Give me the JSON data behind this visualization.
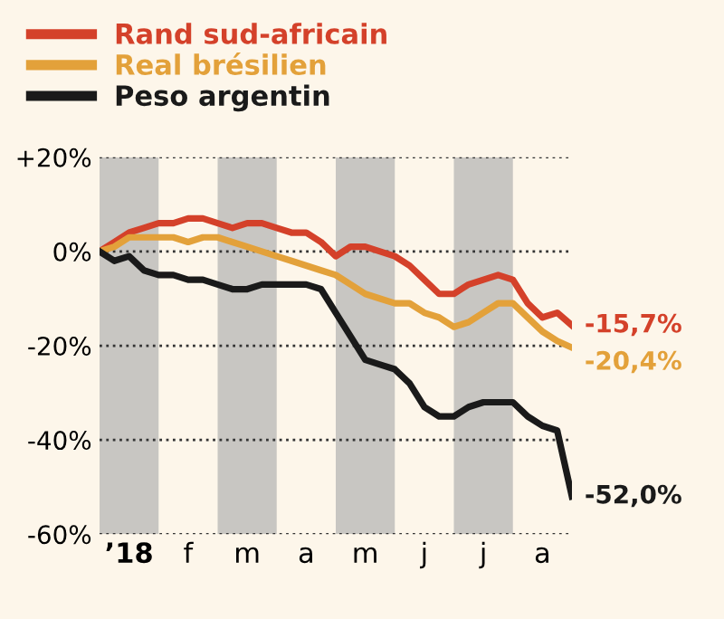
{
  "chart_data": {
    "type": "line",
    "categories": [
      null,
      null,
      "’18",
      null,
      null,
      null,
      "f",
      null,
      null,
      null,
      "m",
      null,
      null,
      null,
      "a",
      null,
      null,
      null,
      "m",
      null,
      null,
      null,
      "j",
      null,
      null,
      null,
      "j",
      null,
      null,
      null,
      "a",
      null,
      null
    ],
    "ylim": [
      -60,
      20
    ],
    "yticks": [
      {
        "value": 20,
        "label": "+20%"
      },
      {
        "value": 0,
        "label": "0%"
      },
      {
        "value": -20,
        "label": "-20%"
      },
      {
        "value": -40,
        "label": "-40%"
      },
      {
        "value": -60,
        "label": "-60%"
      }
    ],
    "grid": "y",
    "legend": "top left",
    "series": [
      {
        "name": "Rand sud-africain",
        "color": "#d4412a",
        "values": [
          0,
          2,
          4,
          5,
          6,
          6,
          7,
          7,
          6,
          5,
          6,
          6,
          5,
          4,
          4,
          2,
          -1,
          1,
          1,
          0,
          -1,
          -3,
          -6,
          -9,
          -9,
          -7,
          -6,
          -5,
          -6,
          -11,
          -14,
          -13,
          -15.7
        ]
      },
      {
        "name": "Real brésilien",
        "color": "#e3a13a",
        "values": [
          0,
          1,
          3,
          3,
          3,
          3,
          2,
          3,
          3,
          2,
          1,
          0,
          -1,
          -2,
          -3,
          -4,
          -5,
          -7,
          -9,
          -10,
          -11,
          -11,
          -13,
          -14,
          -16,
          -15,
          -13,
          -11,
          -11,
          -14,
          -17,
          -19,
          -20.4
        ]
      },
      {
        "name": "Peso argentin",
        "color": "#1a1a1a",
        "values": [
          0,
          -2,
          -1,
          -4,
          -5,
          -5,
          -6,
          -6,
          -7,
          -8,
          -8,
          -7,
          -7,
          -7,
          -7,
          -8,
          -13,
          -18,
          -23,
          -24,
          -25,
          -28,
          -33,
          -35,
          -35,
          -33,
          -32,
          -32,
          -32,
          -35,
          -37,
          -38,
          -52.0
        ]
      }
    ],
    "annotations": [
      "-15,7%",
      "-20,4%",
      "-52,0%"
    ]
  }
}
